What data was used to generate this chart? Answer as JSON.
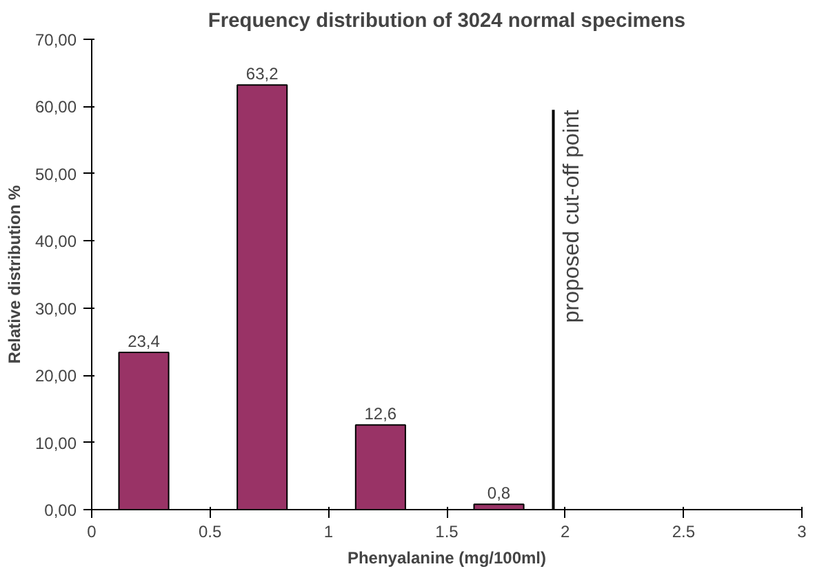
{
  "chart_data": {
    "type": "bar",
    "title": "Frequency distribution of 3024 normal specimens",
    "xlabel": "Phenyalanine (mg/100ml)",
    "ylabel": "Relative distribution %",
    "x": [
      0.22,
      0.72,
      1.22,
      1.72
    ],
    "values": [
      23.4,
      63.2,
      12.6,
      0.8
    ],
    "value_labels": [
      "23,4",
      "63,2",
      "12,6",
      "0,8"
    ],
    "color": "#993366",
    "xlim": [
      0,
      3
    ],
    "ylim": [
      0,
      70
    ],
    "xticks": [
      0,
      0.5,
      1,
      1.5,
      2,
      2.5,
      3
    ],
    "yticks": [
      {
        "value": 0,
        "label": "0,00"
      },
      {
        "value": 10,
        "label": "10,00"
      },
      {
        "value": 20,
        "label": "20,00"
      },
      {
        "value": 30,
        "label": "30,00"
      },
      {
        "value": 40,
        "label": "40,00"
      },
      {
        "value": 50,
        "label": "50,00"
      },
      {
        "value": 60,
        "label": "60,00"
      },
      {
        "value": 70,
        "label": "70,00"
      }
    ],
    "ref_lines": [
      {
        "axis": "x",
        "value": 1.95,
        "label": "proposed cut-off point",
        "color": "#000000"
      }
    ],
    "grid": false
  }
}
